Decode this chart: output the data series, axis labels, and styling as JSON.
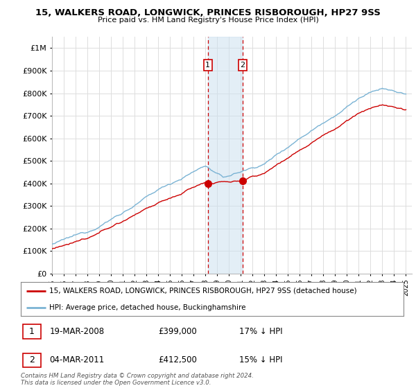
{
  "title1": "15, WALKERS ROAD, LONGWICK, PRINCES RISBOROUGH, HP27 9SS",
  "title2": "Price paid vs. HM Land Registry's House Price Index (HPI)",
  "ytick_values": [
    0,
    100000,
    200000,
    300000,
    400000,
    500000,
    600000,
    700000,
    800000,
    900000,
    1000000
  ],
  "ylim": [
    0,
    1050000
  ],
  "xlim_start": 1995.0,
  "xlim_end": 2025.5,
  "hpi_color": "#7ab3d4",
  "price_color": "#cc0000",
  "transaction1_date": 2008.21,
  "transaction1_price": 399000,
  "transaction1_label": "1",
  "transaction2_date": 2011.17,
  "transaction2_price": 412500,
  "transaction2_label": "2",
  "shade_color": "#cce0f0",
  "vline_color": "#cc0000",
  "legend_line1": "15, WALKERS ROAD, LONGWICK, PRINCES RISBOROUGH, HP27 9SS (detached house)",
  "legend_line2": "HPI: Average price, detached house, Buckinghamshire",
  "annot1_date": "19-MAR-2008",
  "annot1_price": "£399,000",
  "annot1_pct": "17% ↓ HPI",
  "annot2_date": "04-MAR-2011",
  "annot2_price": "£412,500",
  "annot2_pct": "15% ↓ HPI",
  "footer": "Contains HM Land Registry data © Crown copyright and database right 2024.\nThis data is licensed under the Open Government Licence v3.0.",
  "background_color": "#ffffff",
  "grid_color": "#dddddd"
}
